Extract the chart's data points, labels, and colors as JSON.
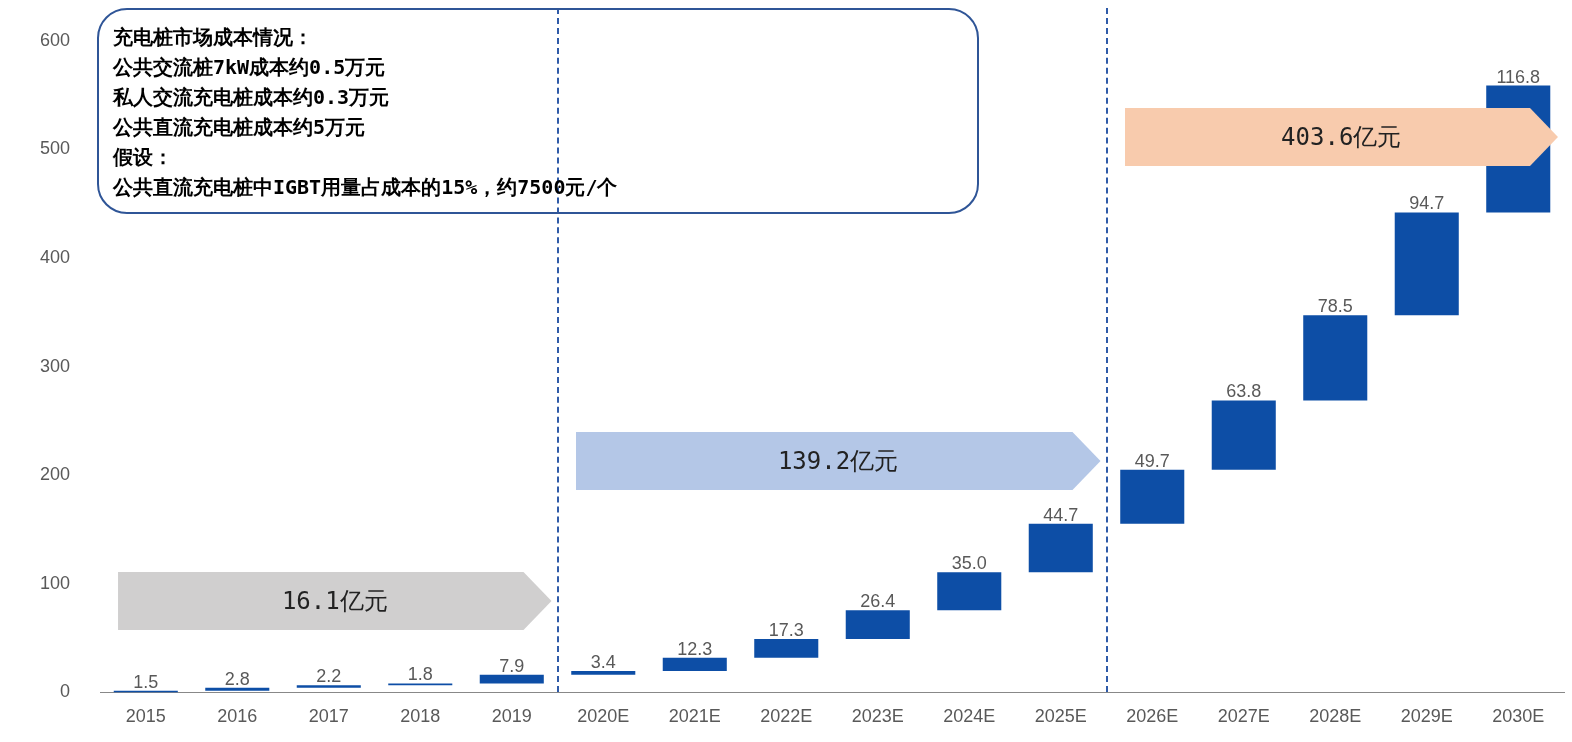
{
  "chart_data": {
    "type": "bar",
    "categories": [
      "2015",
      "2016",
      "2017",
      "2018",
      "2019",
      "2020E",
      "2021E",
      "2022E",
      "2023E",
      "2024E",
      "2025E",
      "2026E",
      "2027E",
      "2028E",
      "2029E",
      "2030E"
    ],
    "values": [
      1.5,
      2.8,
      2.2,
      1.8,
      7.9,
      3.4,
      12.3,
      17.3,
      26.4,
      35.0,
      44.7,
      49.7,
      63.8,
      78.5,
      94.7,
      116.8
    ],
    "base": [
      0,
      1.5,
      4.3,
      6.5,
      8.3,
      16.2,
      19.6,
      31.9,
      49.2,
      75.6,
      110.6,
      155.3,
      205.0,
      268.8,
      347.3,
      442.0
    ],
    "value_labels": [
      "1.5",
      "2.8",
      "2.2",
      "1.8",
      "7.9",
      "3.4",
      "12.3",
      "17.3",
      "26.4",
      "35.0",
      "44.7",
      "49.7",
      "63.8",
      "78.5",
      "94.7",
      "116.8"
    ],
    "color": "#0d4ea6",
    "ylim": [
      0,
      600
    ],
    "yticks": [
      0,
      100,
      200,
      300,
      400,
      500,
      600
    ],
    "grid": false,
    "legend": false,
    "bands": [
      {
        "axis": "x",
        "from": "2015",
        "to": "2019",
        "label": "16.1亿元",
        "color": "#d0cfcf"
      },
      {
        "axis": "x",
        "from": "2020E",
        "to": "2025E",
        "label": "139.2亿元",
        "color": "#b4c7e7"
      },
      {
        "axis": "x",
        "from": "2026E",
        "to": "2030E",
        "label": "403.6亿元",
        "color": "#f8cbad"
      }
    ],
    "annotations": [
      "充电桩市场成本情况：",
      "公共交流桩7kW成本约0.5万元",
      "私人交流充电桩成本约0.3万元",
      "公共直流充电桩成本约5万元",
      "假设：",
      "公共直流充电桩中IGBT用量占成本的15%，约7500元/个"
    ]
  }
}
